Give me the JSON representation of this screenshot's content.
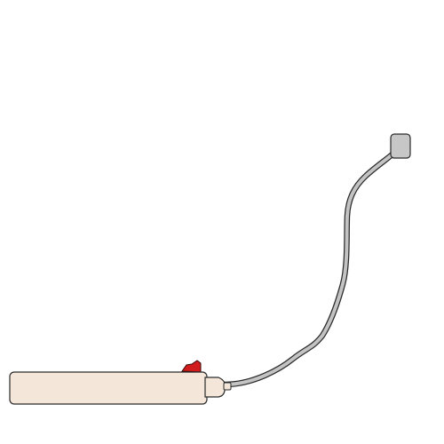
{
  "scene": {
    "objects": [
      {
        "name": "power-strip",
        "color": "#f4e6d9"
      },
      {
        "name": "power-switch",
        "state": "on",
        "color": "#d01c1c"
      },
      {
        "name": "power-cord",
        "color": "#c3c3c3"
      },
      {
        "name": "plug",
        "color": "#c7c7c7"
      }
    ]
  }
}
